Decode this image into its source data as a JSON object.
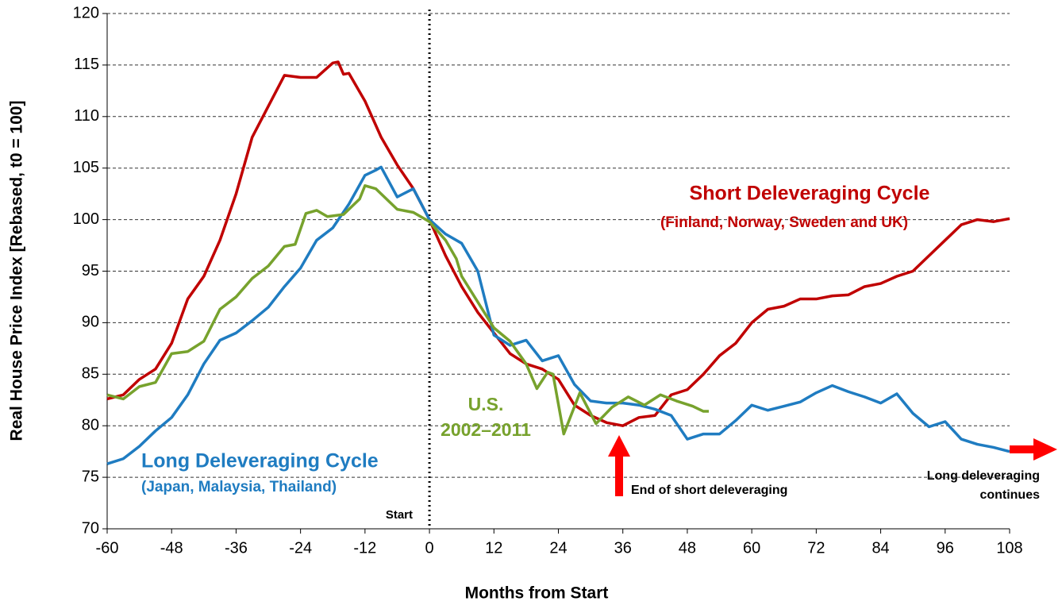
{
  "chart_data": {
    "type": "line",
    "x_label": "Months from Start",
    "y_label": "Real House Price Index [Rebased, t0 = 100]",
    "xlim": [
      -60,
      108
    ],
    "xticks": [
      -60,
      -48,
      -36,
      -24,
      -12,
      0,
      12,
      24,
      36,
      48,
      60,
      72,
      84,
      96,
      108
    ],
    "ylim": [
      70,
      120
    ],
    "yticks": [
      70,
      75,
      80,
      85,
      90,
      95,
      100,
      105,
      110,
      115,
      120
    ],
    "grid": true,
    "annotations": {
      "short_title": "Short Deleveraging Cycle",
      "short_sub": "(Finland, Norway, Sweden and UK)",
      "long_title": "Long Deleveraging Cycle",
      "long_sub": "(Japan, Malaysia, Thailand)",
      "us_1": "U.S.",
      "us_2": "2002–2011",
      "start": "Start",
      "end_short": "End of short deleveraging",
      "long_cont_1": "Long deleveraging",
      "long_cont_2": "continues"
    },
    "series": [
      {
        "name": "Short Deleveraging Cycle",
        "color": "#c00000",
        "x": [
          -60,
          -57,
          -54,
          -51,
          -48,
          -45,
          -42,
          -39,
          -36,
          -33,
          -30,
          -27,
          -24,
          -21,
          -18,
          -17,
          -16,
          -15,
          -12,
          -9,
          -6,
          -3,
          0,
          3,
          6,
          9,
          12,
          15,
          18,
          21,
          24,
          27,
          30,
          33,
          36,
          39,
          42,
          45,
          48,
          51,
          54,
          57,
          60,
          63,
          66,
          69,
          72,
          75,
          78,
          81,
          84,
          87,
          90,
          93,
          96,
          99,
          102,
          105,
          108
        ],
        "values": [
          82.6,
          83,
          84.5,
          85.5,
          88,
          92.3,
          94.5,
          98,
          102.5,
          108,
          111,
          114,
          113.8,
          113.8,
          115.2,
          115.3,
          114.1,
          114.2,
          111.5,
          108,
          105.3,
          103,
          100,
          96.5,
          93.5,
          91,
          89,
          87,
          86,
          85.5,
          84.5,
          82,
          81,
          80.3,
          80,
          80.8,
          81,
          83,
          83.5,
          85,
          86.8,
          88,
          90,
          91.3,
          91.6,
          92.3,
          92.3,
          92.6,
          92.7,
          93.5,
          93.8,
          94.5,
          95,
          96.5,
          98,
          99.5,
          100,
          99.8,
          100.1
        ]
      },
      {
        "name": "Long Deleveraging Cycle",
        "color": "#1f7cc1",
        "x": [
          -60,
          -57,
          -54,
          -51,
          -48,
          -45,
          -42,
          -39,
          -36,
          -33,
          -30,
          -27,
          -24,
          -21,
          -18,
          -15,
          -12,
          -10,
          -9,
          -6,
          -3,
          0,
          3,
          6,
          9,
          12,
          15,
          18,
          21,
          24,
          27,
          30,
          33,
          36,
          39,
          42,
          45,
          48,
          51,
          54,
          57,
          60,
          63,
          66,
          69,
          72,
          75,
          78,
          81,
          84,
          87,
          90,
          93,
          96,
          99,
          102,
          105,
          108
        ],
        "values": [
          76.3,
          76.8,
          78,
          79.5,
          80.8,
          83,
          86,
          88.3,
          89,
          90.2,
          91.5,
          93.5,
          95.3,
          98,
          99.2,
          101.5,
          104.3,
          104.8,
          105.1,
          102.2,
          103,
          100,
          98.6,
          97.7,
          95,
          88.8,
          87.8,
          88.3,
          86.3,
          86.8,
          84,
          82.4,
          82.2,
          82.2,
          82,
          81.6,
          81,
          78.7,
          79.2,
          79.2,
          80.5,
          82,
          81.5,
          81.9,
          82.3,
          83.2,
          83.9,
          83.3,
          82.8,
          82.2,
          83.1,
          81.2,
          79.9,
          80.4,
          78.7,
          78.2,
          77.9,
          77.5
        ]
      },
      {
        "name": "U.S. 2002–2011",
        "color": "#77a22d",
        "x": [
          -60,
          -57,
          -54,
          -51,
          -48,
          -45,
          -42,
          -39,
          -36,
          -33,
          -30,
          -27,
          -25,
          -23,
          -21,
          -19,
          -16,
          -13,
          -12,
          -10,
          -8,
          -6,
          -3,
          0,
          3,
          5,
          6,
          9,
          12,
          15,
          18,
          20,
          22,
          23,
          25,
          28,
          31,
          34,
          37,
          40,
          43,
          46,
          49,
          51,
          52
        ],
        "values": [
          83,
          82.6,
          83.8,
          84.2,
          87,
          87.2,
          88.2,
          91.3,
          92.5,
          94.3,
          95.5,
          97.4,
          97.6,
          100.6,
          100.9,
          100.3,
          100.5,
          102,
          103.3,
          103,
          102,
          101,
          100.7,
          99.8,
          98,
          96.2,
          94.5,
          92,
          89.5,
          88.2,
          86,
          83.6,
          85.2,
          85,
          79.2,
          83.2,
          80.2,
          81.8,
          82.8,
          82,
          83,
          82.4,
          81.9,
          81.4,
          81.4
        ]
      }
    ]
  }
}
